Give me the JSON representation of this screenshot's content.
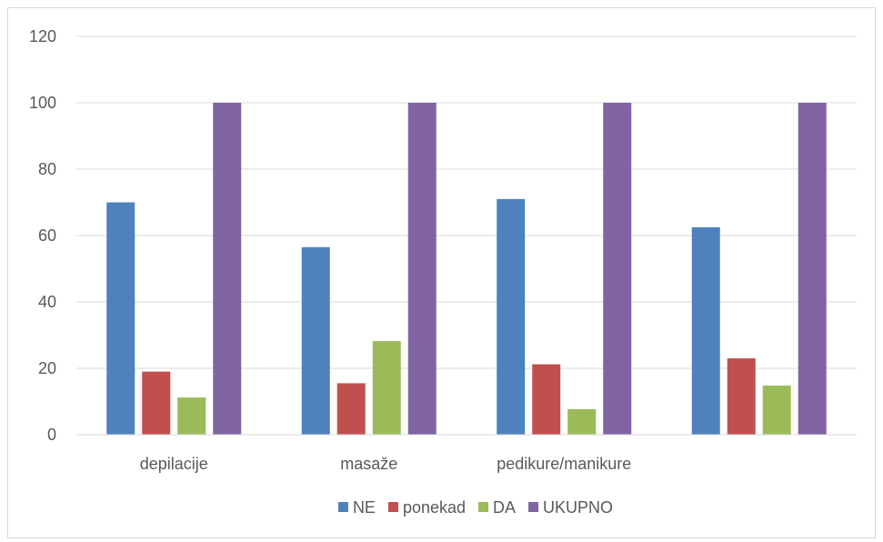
{
  "chart_data": {
    "type": "bar",
    "categories": [
      "depilacije",
      "masaže",
      "pedikure/manikure",
      ""
    ],
    "series": [
      {
        "name": "NE",
        "color": "#4f81bd",
        "values": [
          70,
          56.5,
          71,
          62.5
        ]
      },
      {
        "name": "ponekad",
        "color": "#c0504d",
        "values": [
          19,
          15.5,
          21.2,
          23
        ]
      },
      {
        "name": "DA",
        "color": "#9bbb59",
        "values": [
          11.2,
          28.2,
          7.7,
          14.8
        ]
      },
      {
        "name": "UKUPNO",
        "color": "#8064a2",
        "values": [
          100,
          100,
          100,
          100
        ]
      }
    ],
    "ylim": [
      0,
      120
    ],
    "yticks": [
      "0",
      "20",
      "40",
      "60",
      "80",
      "100",
      "120"
    ],
    "grid": true,
    "legend": "bottom"
  }
}
